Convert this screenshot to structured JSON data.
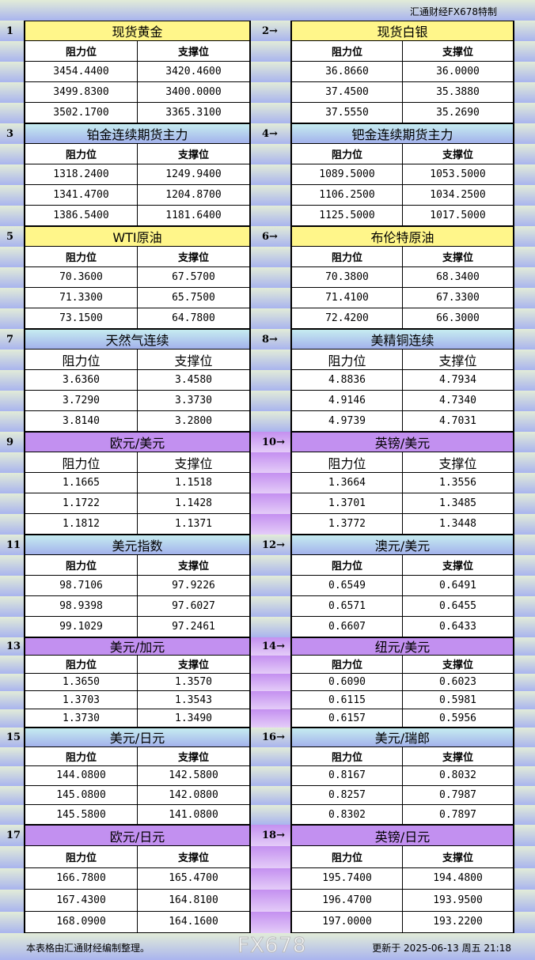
{
  "brand": "汇通财经FX678特制",
  "col_headers": {
    "resistance": "阻力位",
    "support": "支撑位"
  },
  "blocks": [
    {
      "theme": "yellow",
      "left": {
        "no": "1",
        "title": "现货黄金",
        "rows": [
          [
            "3454.4400",
            "3420.4600"
          ],
          [
            "3499.8300",
            "3400.0000"
          ],
          [
            "3502.1700",
            "3365.3100"
          ]
        ]
      },
      "right": {
        "no": "2→",
        "title": "现货白银",
        "rows": [
          [
            "36.8660",
            "36.0000"
          ],
          [
            "37.4500",
            "35.3880"
          ],
          [
            "37.5550",
            "35.2690"
          ]
        ]
      }
    },
    {
      "theme": "blue",
      "left": {
        "no": "3",
        "title": "铂金连续期货主力",
        "rows": [
          [
            "1318.2400",
            "1249.9400"
          ],
          [
            "1341.4700",
            "1204.8700"
          ],
          [
            "1386.5400",
            "1181.6400"
          ]
        ]
      },
      "right": {
        "no": "4→",
        "title": "钯金连续期货主力",
        "rows": [
          [
            "1089.5000",
            "1053.5000"
          ],
          [
            "1106.2500",
            "1034.2500"
          ],
          [
            "1125.5000",
            "1017.5000"
          ]
        ]
      }
    },
    {
      "theme": "yellow",
      "left": {
        "no": "5",
        "title": "WTI原油",
        "rows": [
          [
            "70.3600",
            "67.5700"
          ],
          [
            "71.3300",
            "65.7500"
          ],
          [
            "73.1500",
            "64.7800"
          ]
        ]
      },
      "right": {
        "no": "6→",
        "title": "布伦特原油",
        "rows": [
          [
            "70.3800",
            "68.3400"
          ],
          [
            "71.4100",
            "67.3300"
          ],
          [
            "72.4200",
            "66.3000"
          ]
        ]
      }
    },
    {
      "theme": "blue",
      "big": true,
      "left": {
        "no": "7",
        "title": "天然气连续",
        "rows": [
          [
            "3.6360",
            "3.4580"
          ],
          [
            "3.7290",
            "3.3730"
          ],
          [
            "3.8140",
            "3.2800"
          ]
        ]
      },
      "right": {
        "no": "8→",
        "title": "美精铜连续",
        "rows": [
          [
            "4.8836",
            "4.7934"
          ],
          [
            "4.9146",
            "4.7340"
          ],
          [
            "4.9739",
            "4.7031"
          ]
        ]
      }
    },
    {
      "theme": "purple",
      "big": true,
      "left": {
        "no": "9",
        "title": "欧元/美元",
        "rows": [
          [
            "1.1665",
            "1.1518"
          ],
          [
            "1.1722",
            "1.1428"
          ],
          [
            "1.1812",
            "1.1371"
          ]
        ]
      },
      "right": {
        "no": "10→",
        "title": "英镑/美元",
        "rows": [
          [
            "1.3664",
            "1.3556"
          ],
          [
            "1.3701",
            "1.3485"
          ],
          [
            "1.3772",
            "1.3448"
          ]
        ]
      }
    },
    {
      "theme": "blue",
      "left": {
        "no": "11",
        "title": "美元指数",
        "rows": [
          [
            "98.7106",
            "97.9226"
          ],
          [
            "98.9398",
            "97.6027"
          ],
          [
            "99.1029",
            "97.2461"
          ]
        ]
      },
      "right": {
        "no": "12→",
        "title": "澳元/美元",
        "rows": [
          [
            "0.6549",
            "0.6491"
          ],
          [
            "0.6571",
            "0.6455"
          ],
          [
            "0.6607",
            "0.6433"
          ]
        ]
      }
    },
    {
      "theme": "purple",
      "left": {
        "no": "13",
        "title": "美元/加元",
        "rows": [
          [
            "1.3650",
            "1.3570"
          ],
          [
            "1.3703",
            "1.3543"
          ],
          [
            "1.3730",
            "1.3490"
          ]
        ]
      },
      "right": {
        "no": "14→",
        "title": "纽元/美元",
        "rows": [
          [
            "0.6090",
            "0.6023"
          ],
          [
            "0.6115",
            "0.5981"
          ],
          [
            "0.6157",
            "0.5956"
          ]
        ]
      }
    },
    {
      "theme": "blue",
      "left": {
        "no": "15",
        "title": "美元/日元",
        "rows": [
          [
            "144.0800",
            "142.5800"
          ],
          [
            "145.0800",
            "142.0800"
          ],
          [
            "145.5800",
            "141.0800"
          ]
        ]
      },
      "right": {
        "no": "16→",
        "title": "美元/瑞郎",
        "rows": [
          [
            "0.8167",
            "0.8032"
          ],
          [
            "0.8257",
            "0.7987"
          ],
          [
            "0.8302",
            "0.7897"
          ]
        ]
      }
    },
    {
      "theme": "purple",
      "left": {
        "no": "17",
        "title": "欧元/日元",
        "rows": [
          [
            "166.7800",
            "165.4700"
          ],
          [
            "167.4300",
            "164.8100"
          ],
          [
            "168.0900",
            "164.1600"
          ]
        ]
      },
      "right": {
        "no": "18→",
        "title": "英镑/日元",
        "rows": [
          [
            "195.7400",
            "194.4800"
          ],
          [
            "196.4700",
            "193.9500"
          ],
          [
            "197.0000",
            "193.2200"
          ]
        ]
      }
    }
  ],
  "footer": {
    "note": "本表格由汇通财经编制整理。",
    "updated": "更新于 2025-06-13 周五 21:18"
  },
  "watermark": "FX678"
}
